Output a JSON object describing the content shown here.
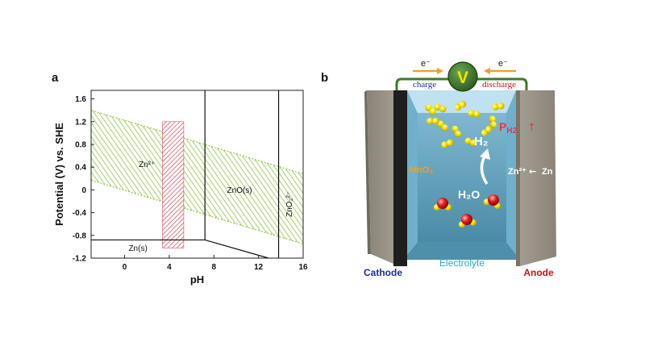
{
  "panels": {
    "a": "a",
    "b": "b"
  },
  "chart_data": {
    "type": "line",
    "title": "",
    "xlabel": "pH",
    "ylabel": "Potential (V) vs. SHE",
    "xlim": [
      -3,
      16
    ],
    "ylim": [
      -1.2,
      1.75
    ],
    "x_ticks": [
      0,
      4,
      8,
      12,
      16
    ],
    "y_ticks": [
      -1.2,
      -0.8,
      -0.4,
      0,
      0.4,
      0.8,
      1.2,
      1.6
    ],
    "x_tick_labels": [
      "0",
      "4",
      "8",
      "12",
      "16"
    ],
    "y_tick_labels": [
      "-1.2",
      "-0.8",
      "-0.4",
      "0",
      "0.4",
      "0.8",
      "1.2",
      "1.6"
    ],
    "grid": false,
    "water_stability_window": {
      "upper": [
        [
          -3,
          1.4
        ],
        [
          16,
          0.28
        ]
      ],
      "lower": [
        [
          -3,
          0.17
        ],
        [
          16,
          -0.95
        ]
      ],
      "color": "#8cc63f"
    },
    "highlight_region": {
      "x_range": [
        3.4,
        5.3
      ],
      "y_range": [
        -1.02,
        1.2
      ],
      "color": "#d94c5a"
    },
    "phase_boundaries": [
      {
        "points": [
          [
            -3,
            -0.88
          ],
          [
            7.2,
            -0.88
          ]
        ]
      },
      {
        "points": [
          [
            7.2,
            -0.88
          ],
          [
            12.9,
            -1.2
          ]
        ]
      },
      {
        "points": [
          [
            7.2,
            -0.88
          ],
          [
            7.2,
            1.75
          ]
        ]
      },
      {
        "points": [
          [
            13.8,
            -1.2
          ],
          [
            13.8,
            1.75
          ]
        ]
      }
    ],
    "region_labels": [
      {
        "text": "Zn²⁺",
        "x": 2.0,
        "y": 0.4
      },
      {
        "text": "ZnO(s)",
        "x": 10.3,
        "y": -0.05
      },
      {
        "text": "Zn(s)",
        "x": 1.2,
        "y": -1.07
      },
      {
        "text": "ZnO₂²⁻",
        "x": 15.0,
        "y": -0.25,
        "rotated": true
      }
    ]
  },
  "diagram": {
    "voltmeter": "V",
    "electron_left": "e⁻",
    "electron_right": "e⁻",
    "charge_label": "charge",
    "discharge_label": "discharge",
    "cathode_material": "MnO₂",
    "h2_label": "H₂",
    "ph2_main": "P",
    "ph2_sub": "H2",
    "ph2_arrow": "↑",
    "h2o_label": "H₂O",
    "zn_ion_label": "Zn²⁺",
    "zn_arrow": "←",
    "zn_label": "Zn",
    "cathode_label": "Cathode",
    "electrolyte_label": "Electrolyte",
    "anode_label": "Anode",
    "colors": {
      "cathode_text": "#1a2f9a",
      "electrolyte_text": "#2aa7d6",
      "anode_text": "#c4161c",
      "wire": "#3d7a2a",
      "voltmeter": "#2c6e1e",
      "mno2": "#f0a020",
      "ph2": "#e8383f"
    }
  }
}
